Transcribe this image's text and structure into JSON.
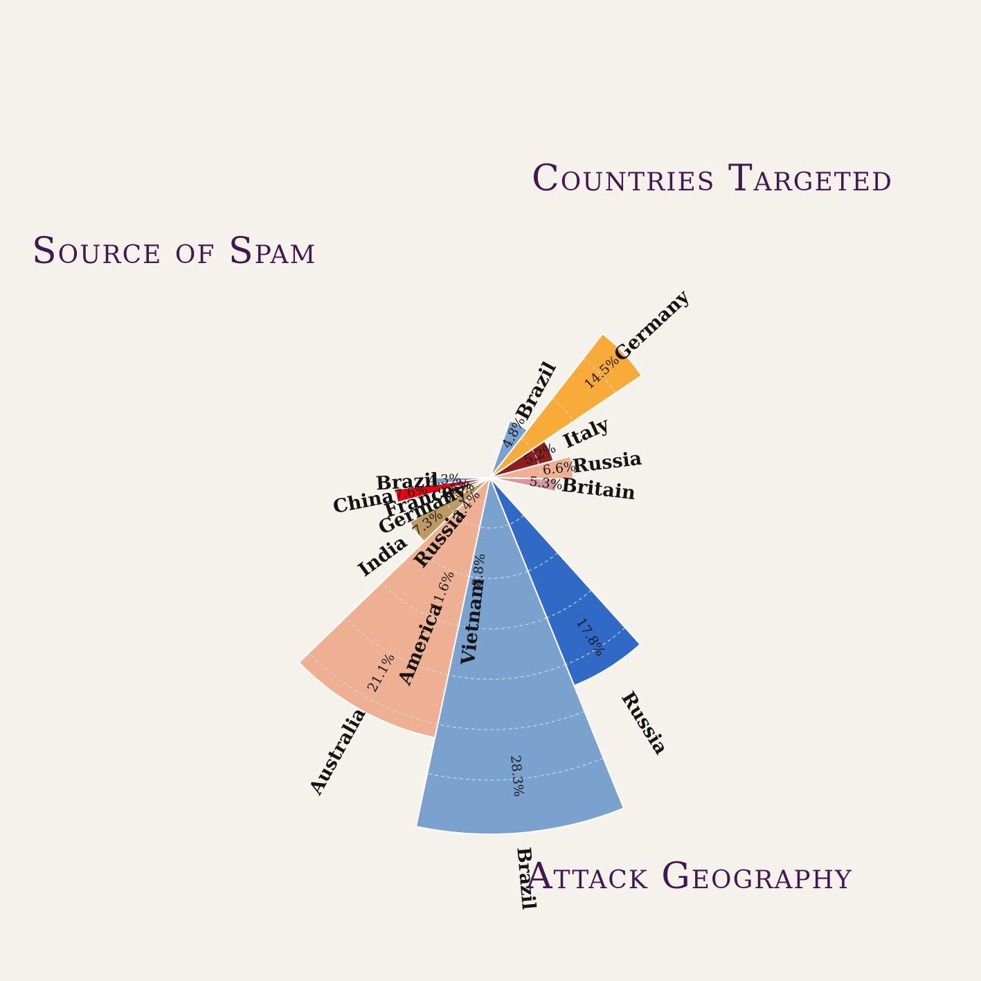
{
  "chart_data": [
    {
      "type": "polar-bar",
      "title": "Source of Spam",
      "unit": "%",
      "slices": [
        {
          "name": "Brazil",
          "value": 4.3,
          "label": "4.3%",
          "color": "#7ba1cf"
        },
        {
          "name": "China",
          "value": 7.6,
          "label": "7.6%",
          "color": "#e30613"
        },
        {
          "name": "France",
          "value": 3.5,
          "label": "3.5%",
          "color": "#43174f"
        },
        {
          "name": "Germany",
          "value": 3.3,
          "label": "3.3%",
          "color": "#f9ab3a"
        },
        {
          "name": "India",
          "value": 7.3,
          "label": "7.3%",
          "color": "#be9964"
        },
        {
          "name": "Russia",
          "value": 3.4,
          "label": "3.4%",
          "color": "#eeaf92"
        },
        {
          "name": "America",
          "value": 11.6,
          "label": "11.6%",
          "color": "#9dc4f0"
        },
        {
          "name": "Vietnam",
          "value": 8.8,
          "label": "8.8%",
          "color": "#f2b72b"
        }
      ]
    },
    {
      "type": "polar-bar",
      "title": "Countries Targeted",
      "unit": "%",
      "slices": [
        {
          "name": "Brazil",
          "value": 4.8,
          "label": "4.8%",
          "color": "#7ba1cf"
        },
        {
          "name": "Germany",
          "value": 14.5,
          "label": "14.5%",
          "color": "#f9ab3a"
        },
        {
          "name": "Italy",
          "value": 5.2,
          "label": "5.2%",
          "color": "#8e1e1e"
        },
        {
          "name": "Russia",
          "value": 6.6,
          "label": "6.6%",
          "color": "#eeaf92"
        },
        {
          "name": "Britain",
          "value": 5.3,
          "label": "5.3%",
          "color": "#d8979c"
        }
      ]
    },
    {
      "type": "polar-bar",
      "title": "Attack Geography",
      "unit": "%",
      "slices": [
        {
          "name": "Russia",
          "value": 17.8,
          "label": "17.8%",
          "color": "#3169c6"
        },
        {
          "name": "Brazil",
          "value": 28.3,
          "label": "28.3%",
          "color": "#7ba1cf"
        },
        {
          "name": "Australia",
          "value": 21.1,
          "label": "21.1%",
          "color": "#eeaf92"
        }
      ]
    }
  ]
}
